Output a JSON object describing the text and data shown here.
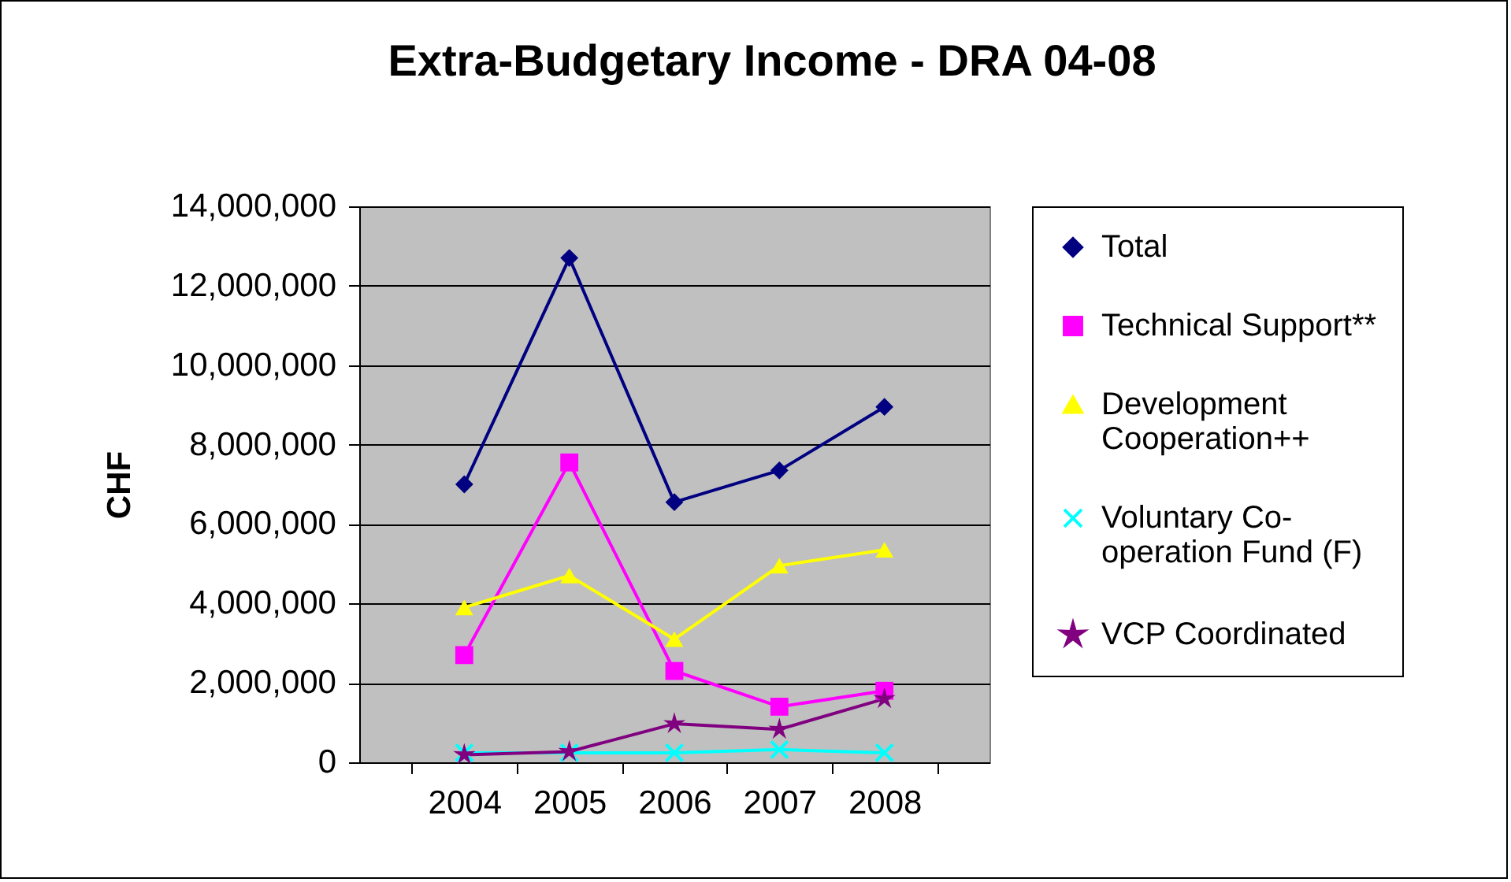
{
  "chart_data": {
    "type": "line",
    "title": "Extra-Budgetary Income - DRA 04-08",
    "ylabel": "CHF",
    "categories": [
      "2004",
      "2005",
      "2006",
      "2007",
      "2008"
    ],
    "ylim": [
      0,
      14000000
    ],
    "yticks": [
      {
        "value": 0,
        "label": "0"
      },
      {
        "value": 2000000,
        "label": "2,000,000"
      },
      {
        "value": 4000000,
        "label": "4,000,000"
      },
      {
        "value": 6000000,
        "label": "6,000,000"
      },
      {
        "value": 8000000,
        "label": "8,000,000"
      },
      {
        "value": 10000000,
        "label": "10,000,000"
      },
      {
        "value": 12000000,
        "label": "12,000,000"
      },
      {
        "value": 14000000,
        "label": "14,000,000"
      }
    ],
    "grid": "y",
    "legend": "right",
    "series": [
      {
        "name": "Total",
        "color": "#000080",
        "marker": "diamond",
        "values": [
          7000000,
          12700000,
          6550000,
          7350000,
          8950000
        ]
      },
      {
        "name": "Technical Support**",
        "color": "#ff00ff",
        "marker": "square",
        "values": [
          2700000,
          7550000,
          2300000,
          1400000,
          1800000
        ]
      },
      {
        "name": "Development Cooperation++",
        "color": "#ffff00",
        "marker": "triangle",
        "values": [
          3900000,
          4700000,
          3100000,
          4950000,
          5350000
        ]
      },
      {
        "name": "Voluntary Co-operation Fund (F)",
        "color": "#00ffff",
        "marker": "cross",
        "values": [
          240000,
          240000,
          240000,
          320000,
          240000
        ]
      },
      {
        "name": "VCP Coordinated",
        "color": "#800080",
        "marker": "star",
        "values": [
          190000,
          270000,
          970000,
          830000,
          1600000
        ]
      }
    ]
  }
}
